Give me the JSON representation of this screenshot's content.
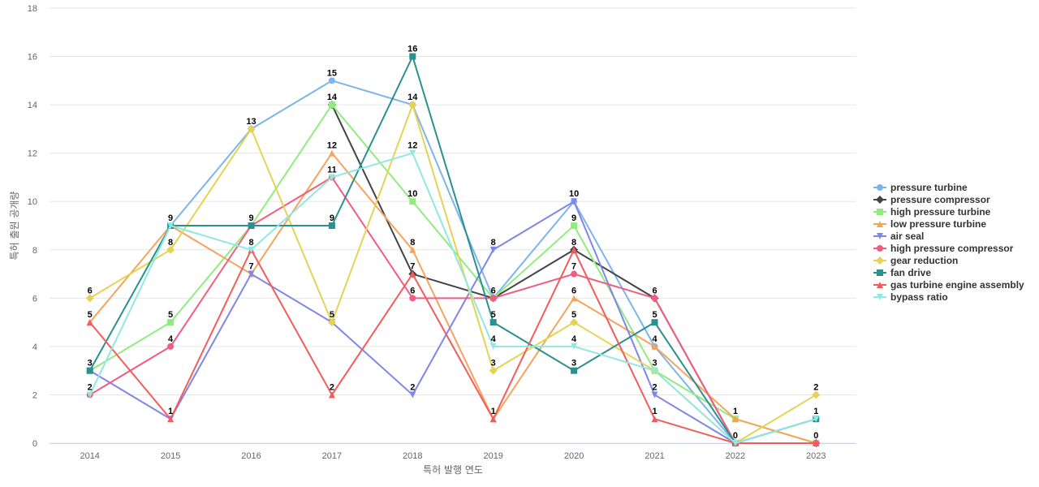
{
  "chart_data": {
    "type": "line",
    "xlabel": "특허 발행 연도",
    "ylabel": "특허 출원 공개량",
    "categories": [
      "2014",
      "2015",
      "2016",
      "2017",
      "2018",
      "2019",
      "2020",
      "2021",
      "2022",
      "2023"
    ],
    "ylim": [
      0,
      18
    ],
    "yticks": [
      0,
      2,
      4,
      6,
      8,
      10,
      12,
      14,
      16,
      18
    ],
    "grid": true,
    "legend_position": "right",
    "series": [
      {
        "name": "pressure turbine",
        "color": "#7cb5ec",
        "marker": "circle",
        "values": [
          null,
          9,
          13,
          15,
          14,
          6,
          10,
          4,
          0,
          0
        ]
      },
      {
        "name": "pressure compressor",
        "color": "#434348",
        "marker": "diamond",
        "values": [
          null,
          null,
          null,
          14,
          7,
          6,
          8,
          6,
          0,
          0
        ]
      },
      {
        "name": "high pressure turbine",
        "color": "#90ed7d",
        "marker": "square",
        "values": [
          3,
          5,
          9,
          14,
          10,
          6,
          9,
          3,
          1,
          0
        ]
      },
      {
        "name": "low pressure turbine",
        "color": "#f7a35c",
        "marker": "triangle",
        "values": [
          5,
          9,
          7,
          12,
          8,
          1,
          6,
          4,
          1,
          0
        ]
      },
      {
        "name": "air seal",
        "color": "#8085e9",
        "marker": "triangle-down",
        "values": [
          3,
          1,
          7,
          5,
          2,
          8,
          10,
          2,
          0,
          1
        ]
      },
      {
        "name": "high pressure compressor",
        "color": "#f15c80",
        "marker": "circle",
        "values": [
          2,
          4,
          9,
          11,
          6,
          6,
          7,
          6,
          0,
          0
        ]
      },
      {
        "name": "gear reduction",
        "color": "#e4d354",
        "marker": "diamond",
        "values": [
          6,
          8,
          13,
          5,
          14,
          3,
          5,
          3,
          0,
          2
        ]
      },
      {
        "name": "fan drive",
        "color": "#2b908f",
        "marker": "square",
        "values": [
          3,
          9,
          9,
          9,
          16,
          5,
          3,
          5,
          0,
          1
        ]
      },
      {
        "name": "gas turbine engine assembly",
        "color": "#f45b5b",
        "marker": "triangle",
        "values": [
          5,
          1,
          8,
          2,
          7,
          1,
          8,
          1,
          0,
          0
        ]
      },
      {
        "name": "bypass ratio",
        "color": "#91e8e1",
        "marker": "triangle-down",
        "values": [
          2,
          9,
          8,
          11,
          12,
          4,
          4,
          3,
          0,
          1
        ]
      }
    ],
    "data_labels": [
      {
        "x": "2014",
        "y": 6,
        "text": "6"
      },
      {
        "x": "2014",
        "y": 5,
        "text": "5"
      },
      {
        "x": "2014",
        "y": 3,
        "text": "3"
      },
      {
        "x": "2014",
        "y": 2,
        "text": "2"
      },
      {
        "x": "2015",
        "y": 9,
        "text": "9"
      },
      {
        "x": "2015",
        "y": 8,
        "text": "8"
      },
      {
        "x": "2015",
        "y": 5,
        "text": "5"
      },
      {
        "x": "2015",
        "y": 4,
        "text": "4"
      },
      {
        "x": "2015",
        "y": 1,
        "text": "1"
      },
      {
        "x": "2016",
        "y": 13,
        "text": "13"
      },
      {
        "x": "2016",
        "y": 9,
        "text": "9"
      },
      {
        "x": "2016",
        "y": 8,
        "text": "8"
      },
      {
        "x": "2016",
        "y": 7,
        "text": "7"
      },
      {
        "x": "2017",
        "y": 15,
        "text": "15"
      },
      {
        "x": "2017",
        "y": 14,
        "text": "14"
      },
      {
        "x": "2017",
        "y": 12,
        "text": "12"
      },
      {
        "x": "2017",
        "y": 11,
        "text": "11"
      },
      {
        "x": "2017",
        "y": 9,
        "text": "9"
      },
      {
        "x": "2017",
        "y": 5,
        "text": "5"
      },
      {
        "x": "2017",
        "y": 2,
        "text": "2"
      },
      {
        "x": "2018",
        "y": 16,
        "text": "16"
      },
      {
        "x": "2018",
        "y": 14,
        "text": "14"
      },
      {
        "x": "2018",
        "y": 12,
        "text": "12"
      },
      {
        "x": "2018",
        "y": 10,
        "text": "10"
      },
      {
        "x": "2018",
        "y": 8,
        "text": "8"
      },
      {
        "x": "2018",
        "y": 7,
        "text": "7"
      },
      {
        "x": "2018",
        "y": 6,
        "text": "6"
      },
      {
        "x": "2018",
        "y": 2,
        "text": "2"
      },
      {
        "x": "2019",
        "y": 8,
        "text": "8"
      },
      {
        "x": "2019",
        "y": 6,
        "text": "6"
      },
      {
        "x": "2019",
        "y": 5,
        "text": "5"
      },
      {
        "x": "2019",
        "y": 4,
        "text": "4"
      },
      {
        "x": "2019",
        "y": 3,
        "text": "3"
      },
      {
        "x": "2019",
        "y": 1,
        "text": "1"
      },
      {
        "x": "2020",
        "y": 10,
        "text": "10"
      },
      {
        "x": "2020",
        "y": 9,
        "text": "9"
      },
      {
        "x": "2020",
        "y": 8,
        "text": "8"
      },
      {
        "x": "2020",
        "y": 7,
        "text": "7"
      },
      {
        "x": "2020",
        "y": 6,
        "text": "6"
      },
      {
        "x": "2020",
        "y": 5,
        "text": "5"
      },
      {
        "x": "2020",
        "y": 4,
        "text": "4"
      },
      {
        "x": "2020",
        "y": 3,
        "text": "3"
      },
      {
        "x": "2021",
        "y": 6,
        "text": "6"
      },
      {
        "x": "2021",
        "y": 5,
        "text": "5"
      },
      {
        "x": "2021",
        "y": 4,
        "text": "4"
      },
      {
        "x": "2021",
        "y": 3,
        "text": "3"
      },
      {
        "x": "2021",
        "y": 2,
        "text": "2"
      },
      {
        "x": "2021",
        "y": 1,
        "text": "1"
      },
      {
        "x": "2022",
        "y": 1,
        "text": "1"
      },
      {
        "x": "2022",
        "y": 0,
        "text": "0"
      },
      {
        "x": "2023",
        "y": 2,
        "text": "2"
      },
      {
        "x": "2023",
        "y": 1,
        "text": "1"
      },
      {
        "x": "2023",
        "y": 0,
        "text": "0"
      }
    ]
  }
}
